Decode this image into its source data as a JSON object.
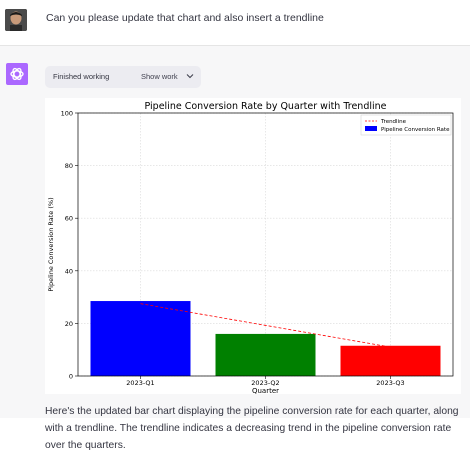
{
  "user_message": {
    "text": "Can you please update that chart and also insert a trendline"
  },
  "assistant": {
    "status_label": "Finished working",
    "show_work_label": "Show work",
    "response_text": "Here's the updated bar chart displaying the pipeline conversion rate for each quarter, along with a trendline. The trendline indicates a decreasing trend in the pipeline conversion rate over the quarters."
  },
  "icons": {
    "user_avatar": "user-avatar-photo",
    "assistant_logo": "openai-logo-icon",
    "show_work": "chevron-down-icon"
  },
  "colors": {
    "assistant_logo_bg": "#ab68ff",
    "bar_q1": "#0000ff",
    "bar_q2": "#008000",
    "bar_q3": "#ff0000",
    "trendline": "#ff0000"
  },
  "chart_data": {
    "type": "bar",
    "title": "Pipeline Conversion Rate by Quarter with Trendline",
    "xlabel": "Quarter",
    "ylabel": "Pipeline Conversion Rate (%)",
    "categories": [
      "2023-Q1",
      "2023-Q2",
      "2023-Q3"
    ],
    "values": [
      28.5,
      16,
      11.5
    ],
    "bar_colors": [
      "#0000ff",
      "#008000",
      "#ff0000"
    ],
    "ylim": [
      0,
      100
    ],
    "yticks": [
      0,
      20,
      40,
      60,
      80,
      100
    ],
    "grid": true,
    "legend": {
      "placement": "top-right",
      "entries": [
        {
          "label": "Trendline",
          "style": "dashed-line",
          "color": "#ff0000"
        },
        {
          "label": "Pipeline Conversion Rate",
          "style": "patch",
          "color": "#0000ff"
        }
      ]
    },
    "trendline": {
      "start": 27.5,
      "end": 11
    }
  }
}
